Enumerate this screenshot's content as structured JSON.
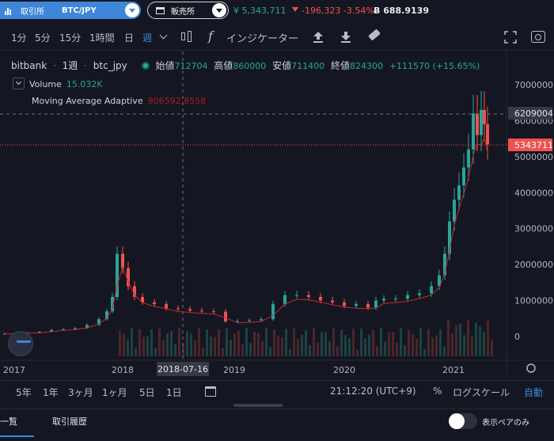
{
  "header": {
    "exchange_label": "取引所",
    "pair": "BTC/JPY",
    "shop_label": "販売所",
    "last_price": "¥ 5,343,711",
    "change": "-196,323 -3.54%",
    "btc_volume": "688.9139"
  },
  "toolbar": {
    "intervals": [
      "1分",
      "5分",
      "15分",
      "1時間",
      "日",
      "週"
    ],
    "active_interval": "週",
    "indicator_label": "インジケーター"
  },
  "legend": {
    "exchange": "bitbank",
    "interval": "1週",
    "symbol": "btc_jpy",
    "open_k": "始値",
    "open_v": "712704",
    "high_k": "高値",
    "high_v": "860000",
    "low_k": "安値",
    "low_v": "711400",
    "close_k": "終値",
    "close_v": "824300",
    "change": "+111570 (+15.65%)",
    "volume_label": "Volume",
    "volume_value": "15.032K",
    "ma_label": "Moving Average Adaptive",
    "ma_value": "906592.8558"
  },
  "chart_data": {
    "type": "candlestick",
    "series": [
      {
        "name": "btc_jpy"
      }
    ],
    "x_ticks": [
      "2017",
      "2018",
      "2019",
      "2020",
      "2021"
    ],
    "y_ticks": [
      "7000000",
      "6000000",
      "5000000",
      "4000000",
      "3000000",
      "2000000",
      "1000000",
      "0"
    ],
    "ylim": [
      0,
      7000000
    ],
    "crosshair_x_label": "2018-07-16",
    "crosshair_y_label": "6209004",
    "last_price_label": "5343711",
    "colors": {
      "up": "#26a69a",
      "down": "#ef5350",
      "ma": "#c62828"
    }
  },
  "rangebar": {
    "ranges": [
      "5年",
      "1年",
      "3ヶ月",
      "1ヶ月",
      "5日",
      "1日"
    ],
    "time": "21:12:20 (UTC+9)",
    "percent": "%",
    "log": "ログスケール",
    "auto": "自動"
  },
  "tabs": {
    "list": "一覧",
    "history": "取引履歴",
    "pair_only": "表示ペアのみ"
  }
}
